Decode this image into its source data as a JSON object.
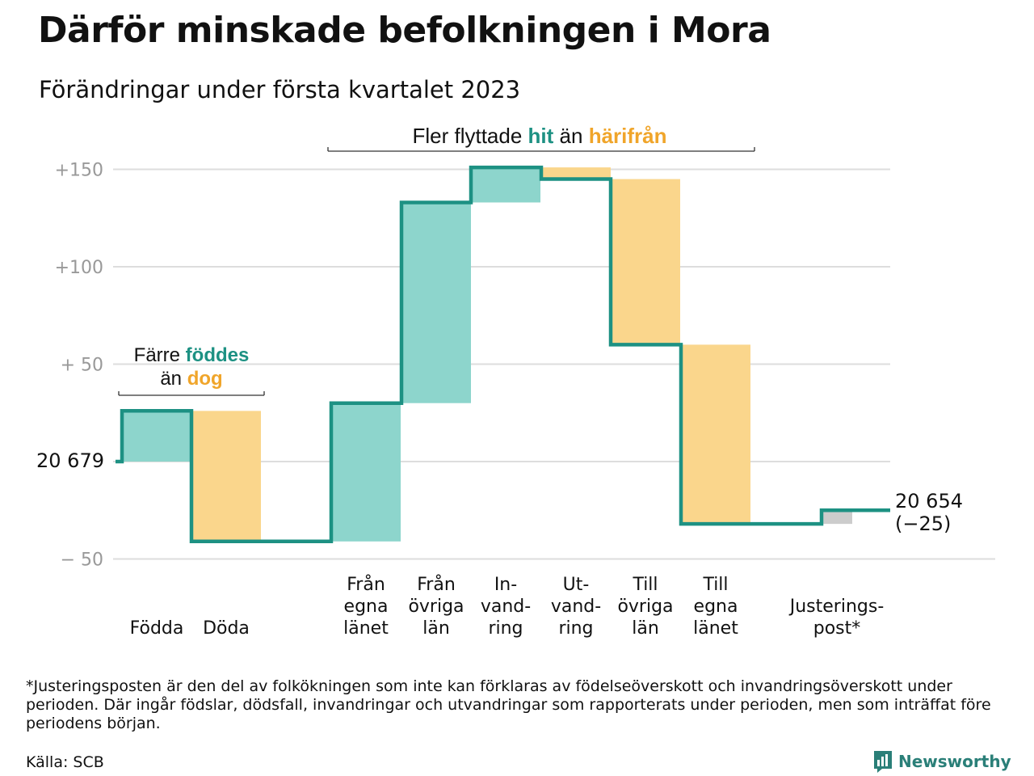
{
  "title": "Därför minskade befolkningen i Mora",
  "subtitle": "Förändringar under första kvartalet 2023",
  "chart_data": {
    "type": "waterfall",
    "start_value": 20679,
    "start_label": "20 679",
    "end_value": 20654,
    "end_label": "20 654",
    "end_change_label": "(−25)",
    "ylim": [
      -50,
      150
    ],
    "yticks": [
      {
        "value": 150,
        "label": "+150"
      },
      {
        "value": 100,
        "label": "+100"
      },
      {
        "value": 50,
        "label": "+ 50"
      },
      {
        "value": 0,
        "label": ""
      },
      {
        "value": -50,
        "label": "− 50"
      }
    ],
    "grid": true,
    "steps": [
      {
        "category": "Född­a",
        "lines": [
          "Födda"
        ],
        "value": 26,
        "kind": "in"
      },
      {
        "category": "Döda",
        "lines": [
          "Döda"
        ],
        "value": -67,
        "kind": "out"
      },
      {
        "category": "Från egna länet",
        "lines": [
          "Från",
          "egna",
          "länet"
        ],
        "value": 71,
        "kind": "in"
      },
      {
        "category": "Från övriga län",
        "lines": [
          "Från",
          "övriga",
          "län"
        ],
        "value": 103,
        "kind": "in"
      },
      {
        "category": "Invandring",
        "lines": [
          "In-",
          "vand-",
          "ring"
        ],
        "value": 18,
        "kind": "in"
      },
      {
        "category": "Utvandring",
        "lines": [
          "Ut-",
          "vand-",
          "ring"
        ],
        "value": -6,
        "kind": "out"
      },
      {
        "category": "Till övriga län",
        "lines": [
          "Till",
          "övriga",
          "län"
        ],
        "value": -85,
        "kind": "out"
      },
      {
        "category": "Till egna länet",
        "lines": [
          "Till",
          "egna",
          "länet"
        ],
        "value": -92,
        "kind": "out"
      },
      {
        "category": "Justeringspost*",
        "lines": [
          "Justerings-",
          "post*"
        ],
        "value": 7,
        "kind": "adjust"
      }
    ],
    "annotations": {
      "births": {
        "prefix": "Färre ",
        "in_word": "föddes",
        "line2_prefix": "än ",
        "out_word": "dog"
      },
      "migration": {
        "prefix": "Fler flyttade ",
        "in_word": "hit",
        "middle": " än ",
        "out_word": "härifrån"
      }
    },
    "colors": {
      "in_fill": "#8dd5cc",
      "out_fill": "#fad68c",
      "adjust_fill": "#cccccc",
      "line": "#1d9183",
      "in_text": "#1d9183",
      "out_text": "#f0a52a",
      "grid": "#dddddd",
      "tick_text": "#999999"
    }
  },
  "footnote": "*Justeringsposten är den del av folkökningen som inte kan förklaras av födelseöverskott och invandringsöverskott under perioden. Där ingår födslar, dödsfall, invandringar och utvandringar som rapporterats under perioden, men som inträffat före periodens början.",
  "source": "Källa: SCB",
  "brand": {
    "name": "Newsworthy",
    "icon": "newsworthy-logo-icon"
  }
}
